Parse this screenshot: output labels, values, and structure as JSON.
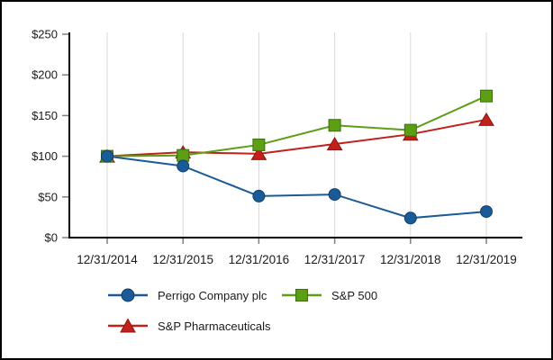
{
  "window": {
    "background_color": "#ffffff",
    "frame_border_color": "#000000"
  },
  "chart_data": {
    "type": "line",
    "title": "",
    "xlabel": "",
    "ylabel": "",
    "x_labels": [
      "12/31/2014",
      "12/31/2015",
      "12/31/2016",
      "12/31/2017",
      "12/31/2018",
      "12/31/2019"
    ],
    "y_ticks": [
      "$0",
      "$50",
      "$100",
      "$150",
      "$200",
      "$250"
    ],
    "y_tick_values": [
      0,
      50,
      100,
      150,
      200,
      250
    ],
    "ylim": [
      0,
      250
    ],
    "grid": "vertical-only",
    "gridline_color": "#d9d9d9",
    "axis_color": "#000000",
    "tick_color": "#7f7f7f",
    "text_color": "#1a1a1a",
    "legend_position": "bottom",
    "series": [
      {
        "name": "Perrigo Company plc",
        "marker": "circle",
        "color": "#1a5a96",
        "marker_border": "#0f3e6e",
        "values": [
          100,
          88,
          51,
          53,
          24,
          32
        ]
      },
      {
        "name": "S&P 500",
        "marker": "square",
        "color": "#5c9e14",
        "marker_border": "#3a7010",
        "values": [
          100,
          101,
          114,
          138,
          132,
          174
        ]
      },
      {
        "name": "S&P Pharmaceuticals",
        "marker": "triangle",
        "color": "#c2201a",
        "marker_border": "#8c1511",
        "values": [
          100,
          105,
          103,
          115,
          127,
          145
        ]
      }
    ]
  }
}
